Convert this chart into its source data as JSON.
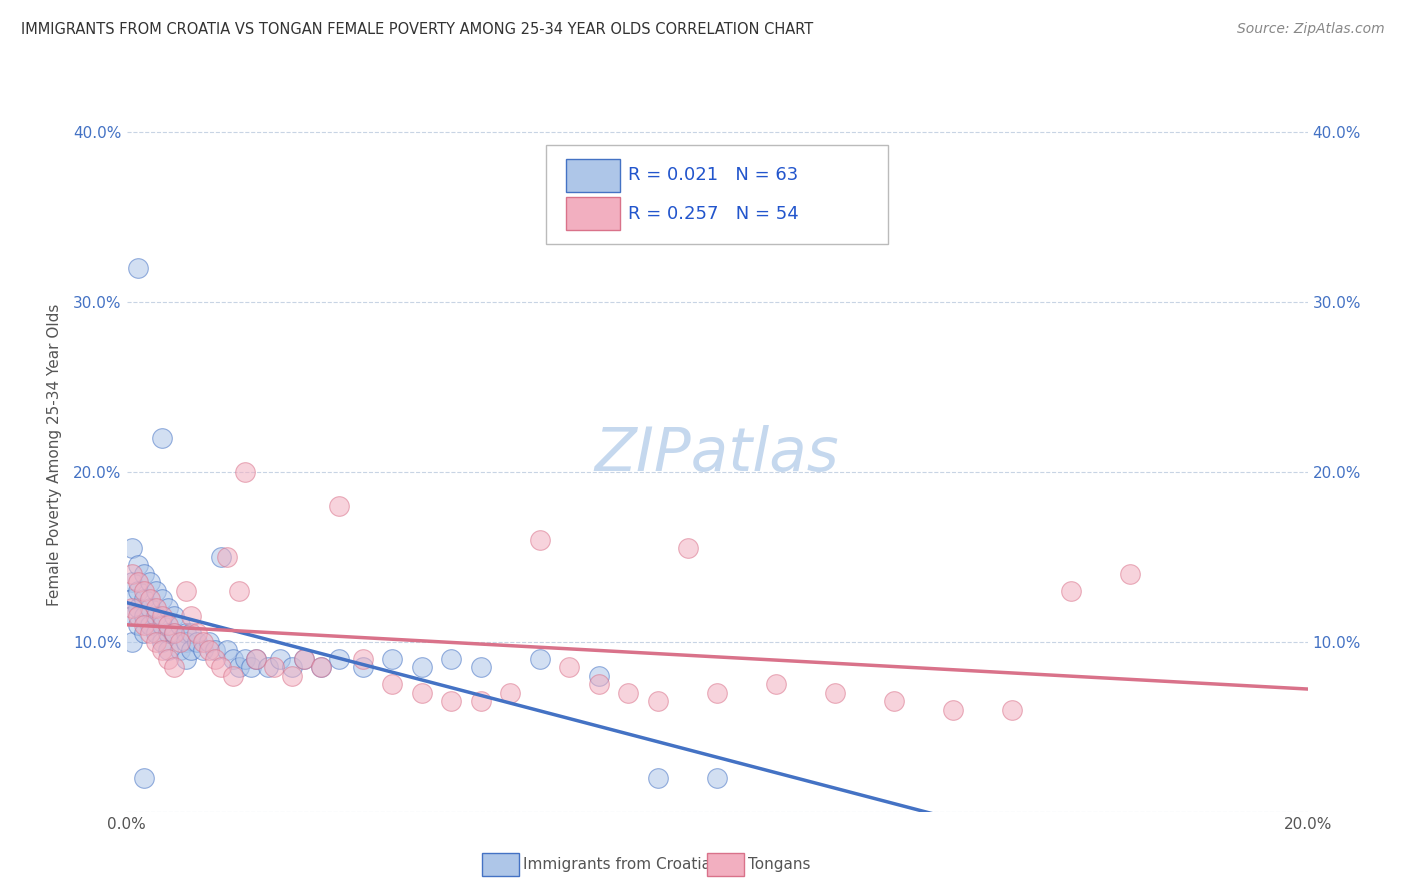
{
  "title": "IMMIGRANTS FROM CROATIA VS TONGAN FEMALE POVERTY AMONG 25-34 YEAR OLDS CORRELATION CHART",
  "source": "Source: ZipAtlas.com",
  "ylabel": "Female Poverty Among 25-34 Year Olds",
  "xlim": [
    0.0,
    0.2
  ],
  "ylim": [
    0.0,
    0.42
  ],
  "xticks": [
    0.0,
    0.05,
    0.1,
    0.15,
    0.2
  ],
  "xticklabels": [
    "0.0%",
    "",
    "",
    "",
    "20.0%"
  ],
  "yticks": [
    0.0,
    0.1,
    0.2,
    0.3,
    0.4
  ],
  "yticklabels_left": [
    "",
    "10.0%",
    "20.0%",
    "30.0%",
    "40.0%"
  ],
  "yticklabels_right": [
    "",
    "10.0%",
    "20.0%",
    "30.0%",
    "40.0%"
  ],
  "legend_labels": [
    "Immigrants from Croatia",
    "Tongans"
  ],
  "croatia_R": "R = 0.021",
  "croatia_N": "N = 63",
  "tongan_R": "R = 0.257",
  "tongan_N": "N = 54",
  "croatia_color": "#aec6e8",
  "tongan_color": "#f2afc0",
  "croatia_line_color": "#4472c4",
  "tongan_line_color": "#d9728a",
  "watermark_color": "#c5d8ee",
  "background_color": "#ffffff",
  "grid_color": "#c8d4e4",
  "croatia_x": [
    0.001,
    0.001,
    0.001,
    0.001,
    0.001,
    0.002,
    0.002,
    0.002,
    0.002,
    0.003,
    0.003,
    0.003,
    0.003,
    0.004,
    0.004,
    0.004,
    0.005,
    0.005,
    0.005,
    0.006,
    0.006,
    0.006,
    0.007,
    0.007,
    0.007,
    0.008,
    0.008,
    0.009,
    0.009,
    0.01,
    0.01,
    0.01,
    0.011,
    0.011,
    0.012,
    0.013,
    0.014,
    0.015,
    0.016,
    0.017,
    0.018,
    0.019,
    0.02,
    0.021,
    0.022,
    0.024,
    0.026,
    0.028,
    0.03,
    0.033,
    0.036,
    0.04,
    0.045,
    0.05,
    0.055,
    0.06,
    0.07,
    0.08,
    0.09,
    0.1,
    0.002,
    0.003,
    0.006
  ],
  "croatia_y": [
    0.155,
    0.135,
    0.125,
    0.115,
    0.1,
    0.145,
    0.13,
    0.12,
    0.11,
    0.14,
    0.125,
    0.115,
    0.105,
    0.135,
    0.12,
    0.11,
    0.13,
    0.115,
    0.105,
    0.125,
    0.11,
    0.1,
    0.12,
    0.105,
    0.095,
    0.115,
    0.105,
    0.11,
    0.095,
    0.105,
    0.1,
    0.09,
    0.105,
    0.095,
    0.1,
    0.095,
    0.1,
    0.095,
    0.15,
    0.095,
    0.09,
    0.085,
    0.09,
    0.085,
    0.09,
    0.085,
    0.09,
    0.085,
    0.09,
    0.085,
    0.09,
    0.085,
    0.09,
    0.085,
    0.09,
    0.085,
    0.09,
    0.08,
    0.02,
    0.02,
    0.32,
    0.02,
    0.22
  ],
  "tongan_x": [
    0.001,
    0.001,
    0.002,
    0.002,
    0.003,
    0.003,
    0.004,
    0.004,
    0.005,
    0.005,
    0.006,
    0.006,
    0.007,
    0.007,
    0.008,
    0.008,
    0.009,
    0.01,
    0.011,
    0.012,
    0.013,
    0.014,
    0.015,
    0.016,
    0.017,
    0.018,
    0.019,
    0.02,
    0.022,
    0.025,
    0.028,
    0.03,
    0.033,
    0.036,
    0.04,
    0.045,
    0.05,
    0.055,
    0.06,
    0.065,
    0.07,
    0.075,
    0.08,
    0.085,
    0.09,
    0.095,
    0.1,
    0.11,
    0.12,
    0.13,
    0.14,
    0.15,
    0.16,
    0.17
  ],
  "tongan_y": [
    0.14,
    0.12,
    0.135,
    0.115,
    0.13,
    0.11,
    0.125,
    0.105,
    0.12,
    0.1,
    0.115,
    0.095,
    0.11,
    0.09,
    0.105,
    0.085,
    0.1,
    0.13,
    0.115,
    0.105,
    0.1,
    0.095,
    0.09,
    0.085,
    0.15,
    0.08,
    0.13,
    0.2,
    0.09,
    0.085,
    0.08,
    0.09,
    0.085,
    0.18,
    0.09,
    0.075,
    0.07,
    0.065,
    0.065,
    0.07,
    0.16,
    0.085,
    0.075,
    0.07,
    0.065,
    0.155,
    0.07,
    0.075,
    0.07,
    0.065,
    0.06,
    0.06,
    0.13,
    0.14
  ]
}
